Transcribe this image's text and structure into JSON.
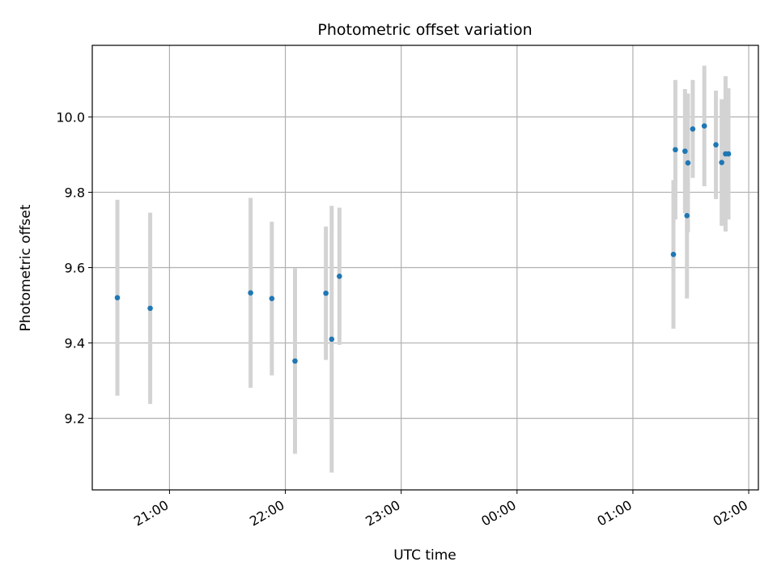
{
  "chart_data": {
    "type": "scatter",
    "title": "Photometric offset variation",
    "xlabel": "UTC time",
    "ylabel": "Photometric offset",
    "x_axis_type": "datetime",
    "date_start": "2000-01-01",
    "xlim": [
      "2000-01-01T20:20:00",
      "2000-01-02T02:05:00"
    ],
    "x_ticks": [
      {
        "value": "2000-01-01T21:00:00",
        "label": "21:00"
      },
      {
        "value": "2000-01-01T22:00:00",
        "label": "22:00"
      },
      {
        "value": "2000-01-01T23:00:00",
        "label": "23:00"
      },
      {
        "value": "2000-01-02T00:00:00",
        "label": "00:00"
      },
      {
        "value": "2000-01-02T01:00:00",
        "label": "01:00"
      },
      {
        "value": "2000-01-02T02:00:00",
        "label": "02:00"
      }
    ],
    "ylim": [
      9.01,
      10.19
    ],
    "y_ticks": [
      9.2,
      9.4,
      9.6,
      9.8,
      10.0
    ],
    "y_tick_labels": [
      "9.2",
      "9.4",
      "9.6",
      "9.8",
      "10.0"
    ],
    "grid": true,
    "colors": {
      "point": "#1f77b4",
      "errorbar": "#d3d3d3",
      "grid": "#b0b0b0"
    },
    "points": [
      {
        "time": "2000-01-01T20:33:00",
        "y": 9.52,
        "err": 0.26
      },
      {
        "time": "2000-01-01T20:50:00",
        "y": 9.492,
        "err": 0.254
      },
      {
        "time": "2000-01-01T21:42:00",
        "y": 9.533,
        "err": 0.252
      },
      {
        "time": "2000-01-01T21:53:00",
        "y": 9.518,
        "err": 0.204
      },
      {
        "time": "2000-01-01T22:05:00",
        "y": 9.352,
        "err": 0.246
      },
      {
        "time": "2000-01-01T22:21:00",
        "y": 9.532,
        "err": 0.177
      },
      {
        "time": "2000-01-01T22:24:00",
        "y": 9.41,
        "err": 0.354
      },
      {
        "time": "2000-01-01T22:28:00",
        "y": 9.577,
        "err": 0.182
      },
      {
        "time": "2000-01-02T01:21:00",
        "y": 9.635,
        "err": 0.197
      },
      {
        "time": "2000-01-02T01:22:00",
        "y": 9.913,
        "err": 0.185
      },
      {
        "time": "2000-01-02T01:27:00",
        "y": 9.909,
        "err": 0.165
      },
      {
        "time": "2000-01-02T01:28:00",
        "y": 9.738,
        "err": 0.22
      },
      {
        "time": "2000-01-02T01:28:30",
        "y": 9.878,
        "err": 0.184
      },
      {
        "time": "2000-01-02T01:31:00",
        "y": 9.968,
        "err": 0.13
      },
      {
        "time": "2000-01-02T01:37:00",
        "y": 9.976,
        "err": 0.16
      },
      {
        "time": "2000-01-02T01:43:00",
        "y": 9.926,
        "err": 0.144
      },
      {
        "time": "2000-01-02T01:46:00",
        "y": 9.879,
        "err": 0.168
      },
      {
        "time": "2000-01-02T01:48:00",
        "y": 9.902,
        "err": 0.206
      },
      {
        "time": "2000-01-02T01:49:30",
        "y": 9.902,
        "err": 0.174
      }
    ]
  }
}
